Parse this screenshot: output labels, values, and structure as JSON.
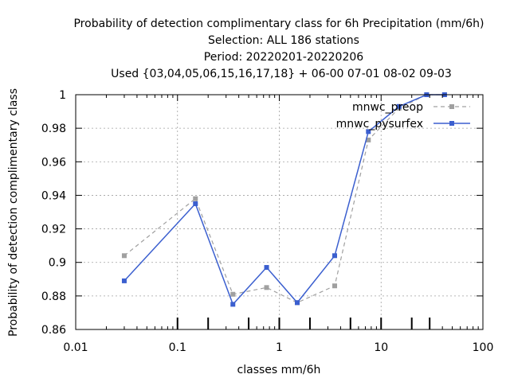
{
  "chart_data": {
    "type": "line",
    "title": [
      "Probability of detection complimentary class  for 6h Precipitation (mm/6h)",
      "Selection: ALL    186 stations",
      "Period: 20220201-20220206",
      "Used {03,04,05,06,15,16,17,18} + 06-00 07-01 08-02 09-03"
    ],
    "xlabel": "classes mm/6h",
    "ylabel": "Probability of detection complimentary class",
    "x_scale": "log",
    "xlim": [
      0.01,
      100
    ],
    "ylim": [
      0.86,
      1.0
    ],
    "x_ticks": [
      {
        "value": 0.01,
        "label": "0.01"
      },
      {
        "value": 0.1,
        "label": "0.1"
      },
      {
        "value": 1,
        "label": "1"
      },
      {
        "value": 10,
        "label": "10"
      },
      {
        "value": 100,
        "label": "100"
      }
    ],
    "y_ticks": [
      {
        "value": 0.86,
        "label": "0.86"
      },
      {
        "value": 0.88,
        "label": "0.88"
      },
      {
        "value": 0.9,
        "label": "0.9"
      },
      {
        "value": 0.92,
        "label": "0.92"
      },
      {
        "value": 0.94,
        "label": "0.94"
      },
      {
        "value": 0.96,
        "label": "0.96"
      },
      {
        "value": 0.98,
        "label": "0.98"
      },
      {
        "value": 1.0,
        "label": "1"
      }
    ],
    "class_boundaries": [
      0.1,
      0.2,
      0.5,
      1,
      2,
      5,
      10,
      20,
      30
    ],
    "grid": true,
    "legend_position": "top-right",
    "series": [
      {
        "name": "mnwc_preop",
        "color": "#a0a0a0",
        "line_style": "dashed",
        "marker": "filled-square",
        "x": [
          0.03,
          0.15,
          0.35,
          0.75,
          1.5,
          3.5,
          7.5,
          15,
          28,
          42
        ],
        "y": [
          0.904,
          0.938,
          0.881,
          0.885,
          0.876,
          0.886,
          0.973,
          0.992,
          1.0,
          1.0
        ]
      },
      {
        "name": "mnwc_pysurfex",
        "color": "#3b5fcf",
        "line_style": "solid",
        "marker": "filled-square",
        "x": [
          0.03,
          0.15,
          0.35,
          0.75,
          1.5,
          3.5,
          7.5,
          15,
          28,
          42
        ],
        "y": [
          0.889,
          0.935,
          0.875,
          0.897,
          0.876,
          0.904,
          0.978,
          0.993,
          1.0,
          1.0
        ]
      }
    ]
  }
}
